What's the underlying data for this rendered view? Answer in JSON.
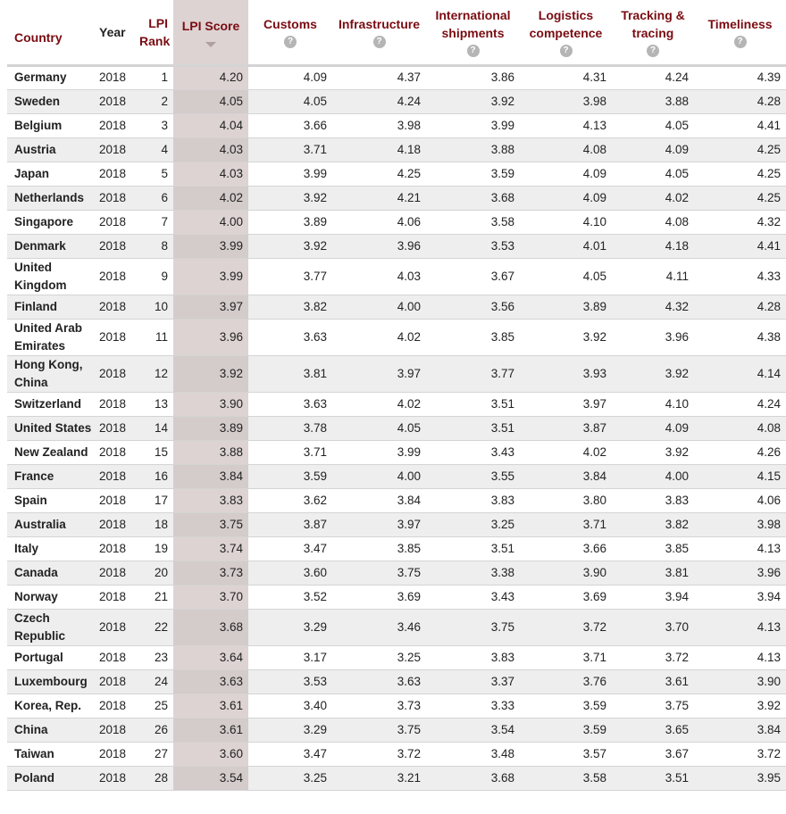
{
  "columns": {
    "country": "Country",
    "year": "Year",
    "rank": "LPI Rank",
    "score": "LPI Score",
    "customs": "Customs",
    "infrastructure": "Infrastructure",
    "intl": "International shipments",
    "logistics": "Logistics competence",
    "tracking": "Tracking & tracing",
    "timeliness": "Timeliness",
    "help_glyph": "?"
  },
  "rows": [
    {
      "country": "Germany",
      "year": "2018",
      "rank": "1",
      "score": "4.20",
      "customs": "4.09",
      "infrastructure": "4.37",
      "intl": "3.86",
      "logistics": "4.31",
      "tracking": "4.24",
      "timeliness": "4.39"
    },
    {
      "country": "Sweden",
      "year": "2018",
      "rank": "2",
      "score": "4.05",
      "customs": "4.05",
      "infrastructure": "4.24",
      "intl": "3.92",
      "logistics": "3.98",
      "tracking": "3.88",
      "timeliness": "4.28"
    },
    {
      "country": "Belgium",
      "year": "2018",
      "rank": "3",
      "score": "4.04",
      "customs": "3.66",
      "infrastructure": "3.98",
      "intl": "3.99",
      "logistics": "4.13",
      "tracking": "4.05",
      "timeliness": "4.41"
    },
    {
      "country": "Austria",
      "year": "2018",
      "rank": "4",
      "score": "4.03",
      "customs": "3.71",
      "infrastructure": "4.18",
      "intl": "3.88",
      "logistics": "4.08",
      "tracking": "4.09",
      "timeliness": "4.25"
    },
    {
      "country": "Japan",
      "year": "2018",
      "rank": "5",
      "score": "4.03",
      "customs": "3.99",
      "infrastructure": "4.25",
      "intl": "3.59",
      "logistics": "4.09",
      "tracking": "4.05",
      "timeliness": "4.25"
    },
    {
      "country": "Netherlands",
      "year": "2018",
      "rank": "6",
      "score": "4.02",
      "customs": "3.92",
      "infrastructure": "4.21",
      "intl": "3.68",
      "logistics": "4.09",
      "tracking": "4.02",
      "timeliness": "4.25"
    },
    {
      "country": "Singapore",
      "year": "2018",
      "rank": "7",
      "score": "4.00",
      "customs": "3.89",
      "infrastructure": "4.06",
      "intl": "3.58",
      "logistics": "4.10",
      "tracking": "4.08",
      "timeliness": "4.32"
    },
    {
      "country": "Denmark",
      "year": "2018",
      "rank": "8",
      "score": "3.99",
      "customs": "3.92",
      "infrastructure": "3.96",
      "intl": "3.53",
      "logistics": "4.01",
      "tracking": "4.18",
      "timeliness": "4.41"
    },
    {
      "country": "United Kingdom",
      "year": "2018",
      "rank": "9",
      "score": "3.99",
      "customs": "3.77",
      "infrastructure": "4.03",
      "intl": "3.67",
      "logistics": "4.05",
      "tracking": "4.11",
      "timeliness": "4.33"
    },
    {
      "country": "Finland",
      "year": "2018",
      "rank": "10",
      "score": "3.97",
      "customs": "3.82",
      "infrastructure": "4.00",
      "intl": "3.56",
      "logistics": "3.89",
      "tracking": "4.32",
      "timeliness": "4.28"
    },
    {
      "country": "United Arab Emirates",
      "year": "2018",
      "rank": "11",
      "score": "3.96",
      "customs": "3.63",
      "infrastructure": "4.02",
      "intl": "3.85",
      "logistics": "3.92",
      "tracking": "3.96",
      "timeliness": "4.38"
    },
    {
      "country": "Hong Kong, China",
      "year": "2018",
      "rank": "12",
      "score": "3.92",
      "customs": "3.81",
      "infrastructure": "3.97",
      "intl": "3.77",
      "logistics": "3.93",
      "tracking": "3.92",
      "timeliness": "4.14"
    },
    {
      "country": "Switzerland",
      "year": "2018",
      "rank": "13",
      "score": "3.90",
      "customs": "3.63",
      "infrastructure": "4.02",
      "intl": "3.51",
      "logistics": "3.97",
      "tracking": "4.10",
      "timeliness": "4.24"
    },
    {
      "country": "United States",
      "year": "2018",
      "rank": "14",
      "score": "3.89",
      "customs": "3.78",
      "infrastructure": "4.05",
      "intl": "3.51",
      "logistics": "3.87",
      "tracking": "4.09",
      "timeliness": "4.08"
    },
    {
      "country": "New Zealand",
      "year": "2018",
      "rank": "15",
      "score": "3.88",
      "customs": "3.71",
      "infrastructure": "3.99",
      "intl": "3.43",
      "logistics": "4.02",
      "tracking": "3.92",
      "timeliness": "4.26"
    },
    {
      "country": "France",
      "year": "2018",
      "rank": "16",
      "score": "3.84",
      "customs": "3.59",
      "infrastructure": "4.00",
      "intl": "3.55",
      "logistics": "3.84",
      "tracking": "4.00",
      "timeliness": "4.15"
    },
    {
      "country": "Spain",
      "year": "2018",
      "rank": "17",
      "score": "3.83",
      "customs": "3.62",
      "infrastructure": "3.84",
      "intl": "3.83",
      "logistics": "3.80",
      "tracking": "3.83",
      "timeliness": "4.06"
    },
    {
      "country": "Australia",
      "year": "2018",
      "rank": "18",
      "score": "3.75",
      "customs": "3.87",
      "infrastructure": "3.97",
      "intl": "3.25",
      "logistics": "3.71",
      "tracking": "3.82",
      "timeliness": "3.98"
    },
    {
      "country": "Italy",
      "year": "2018",
      "rank": "19",
      "score": "3.74",
      "customs": "3.47",
      "infrastructure": "3.85",
      "intl": "3.51",
      "logistics": "3.66",
      "tracking": "3.85",
      "timeliness": "4.13"
    },
    {
      "country": "Canada",
      "year": "2018",
      "rank": "20",
      "score": "3.73",
      "customs": "3.60",
      "infrastructure": "3.75",
      "intl": "3.38",
      "logistics": "3.90",
      "tracking": "3.81",
      "timeliness": "3.96"
    },
    {
      "country": "Norway",
      "year": "2018",
      "rank": "21",
      "score": "3.70",
      "customs": "3.52",
      "infrastructure": "3.69",
      "intl": "3.43",
      "logistics": "3.69",
      "tracking": "3.94",
      "timeliness": "3.94"
    },
    {
      "country": "Czech Republic",
      "year": "2018",
      "rank": "22",
      "score": "3.68",
      "customs": "3.29",
      "infrastructure": "3.46",
      "intl": "3.75",
      "logistics": "3.72",
      "tracking": "3.70",
      "timeliness": "4.13"
    },
    {
      "country": "Portugal",
      "year": "2018",
      "rank": "23",
      "score": "3.64",
      "customs": "3.17",
      "infrastructure": "3.25",
      "intl": "3.83",
      "logistics": "3.71",
      "tracking": "3.72",
      "timeliness": "4.13"
    },
    {
      "country": "Luxembourg",
      "year": "2018",
      "rank": "24",
      "score": "3.63",
      "customs": "3.53",
      "infrastructure": "3.63",
      "intl": "3.37",
      "logistics": "3.76",
      "tracking": "3.61",
      "timeliness": "3.90"
    },
    {
      "country": "Korea, Rep.",
      "year": "2018",
      "rank": "25",
      "score": "3.61",
      "customs": "3.40",
      "infrastructure": "3.73",
      "intl": "3.33",
      "logistics": "3.59",
      "tracking": "3.75",
      "timeliness": "3.92"
    },
    {
      "country": "China",
      "year": "2018",
      "rank": "26",
      "score": "3.61",
      "customs": "3.29",
      "infrastructure": "3.75",
      "intl": "3.54",
      "logistics": "3.59",
      "tracking": "3.65",
      "timeliness": "3.84"
    },
    {
      "country": "Taiwan",
      "year": "2018",
      "rank": "27",
      "score": "3.60",
      "customs": "3.47",
      "infrastructure": "3.72",
      "intl": "3.48",
      "logistics": "3.57",
      "tracking": "3.67",
      "timeliness": "3.72"
    },
    {
      "country": "Poland",
      "year": "2018",
      "rank": "28",
      "score": "3.54",
      "customs": "3.25",
      "infrastructure": "3.21",
      "intl": "3.68",
      "logistics": "3.58",
      "tracking": "3.51",
      "timeliness": "3.95"
    }
  ]
}
